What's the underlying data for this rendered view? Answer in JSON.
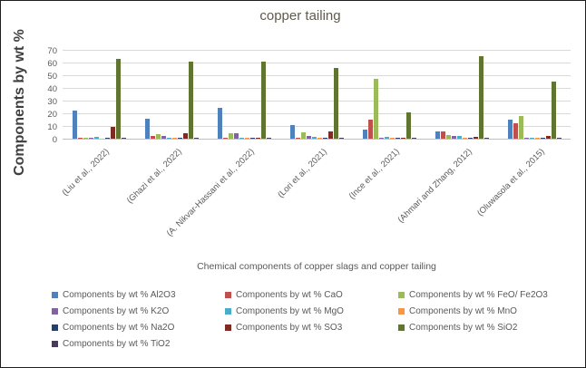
{
  "chart_data": {
    "type": "bar",
    "title": "copper tailing",
    "ylabel": "Components by wt %",
    "xlabel": "Chemical components of copper slags and copper tailing",
    "ylim": [
      0,
      70
    ],
    "ytick_step": 10,
    "grid": true,
    "legend_position": "bottom",
    "categories": [
      "(Liu et al., 2022)",
      "(Ghazi et al., 2022)",
      "(A. Nikvar-Hassani et al., 2022)",
      "(Lori et al., 2021)",
      "(Ince et al., 2021)",
      "(Ahmari and Zhang, 2012)",
      "(Oluwasola et al., 2015)"
    ],
    "series": [
      {
        "name": "Al2O3",
        "legend": "Components by wt % Al2O3",
        "color": "#4F81BD",
        "values": [
          22,
          16,
          24,
          11,
          7,
          6,
          15
        ]
      },
      {
        "name": "CaO",
        "legend": "Components by wt % CaO",
        "color": "#C0504D",
        "values": [
          0.7,
          2.5,
          0.3,
          0.8,
          15,
          6,
          12
        ]
      },
      {
        "name": "FeO-Fe2O3",
        "legend": "Components by wt % FeO/ Fe2O3",
        "color": "#9BBB59",
        "values": [
          0.9,
          3.5,
          4,
          5,
          47,
          3,
          18
        ]
      },
      {
        "name": "K2O",
        "legend": "Components by wt % K2O",
        "color": "#8064A2",
        "values": [
          0.5,
          2,
          4.5,
          2.5,
          0.3,
          2,
          0.5
        ]
      },
      {
        "name": "MgO",
        "legend": "Components by wt % MgO",
        "color": "#4BACC6",
        "values": [
          1.5,
          1,
          1,
          1.5,
          1.5,
          2.5,
          0.5
        ]
      },
      {
        "name": "MnO",
        "legend": "Components by wt % MnO",
        "color": "#F79646",
        "values": [
          0,
          0.3,
          0.1,
          0.2,
          0.5,
          0.2,
          0.4
        ]
      },
      {
        "name": "Na2O",
        "legend": "Components by wt % Na2O",
        "color": "#25406B",
        "values": [
          0.3,
          0.7,
          0.3,
          0.5,
          1,
          0.5,
          0.5
        ]
      },
      {
        "name": "SO3",
        "legend": "Components by wt % SO3",
        "color": "#7E2B24",
        "values": [
          9.5,
          4,
          0.8,
          6,
          1,
          1.5,
          2
        ]
      },
      {
        "name": "SiO2",
        "legend": "Components by wt % SiO2",
        "color": "#5F7530",
        "values": [
          63,
          61,
          61,
          56,
          21,
          65,
          45
        ]
      },
      {
        "name": "TiO2",
        "legend": "Components by wt % TiO2",
        "color": "#473A5C",
        "values": [
          0.3,
          0.5,
          0.3,
          0.3,
          0.3,
          0.3,
          0.3
        ]
      }
    ],
    "colors": {
      "gridline": "#d9d9d9",
      "axis_line": "#bfbfbf",
      "text": "#595959",
      "title": "#5f5b4b",
      "y_axis_title": "#3f3f3f"
    }
  }
}
